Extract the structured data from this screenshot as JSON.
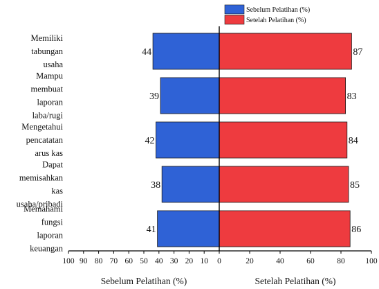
{
  "chart_data": {
    "type": "bar",
    "orientation": "horizontal-diverging",
    "categories": [
      [
        "Memiliki",
        "tabungan",
        "usaha"
      ],
      [
        "Mampu",
        "membuat",
        "laporan",
        "laba/rugi"
      ],
      [
        "Mengetahui",
        "pencatatan",
        "arus kas"
      ],
      [
        "Dapat",
        "memisahkan",
        "kas",
        "usaha/pribadi"
      ],
      [
        "Memahami",
        "fungsi",
        "laporan",
        "keuangan"
      ]
    ],
    "series": [
      {
        "name": "Sebelum Pelatihan (%)",
        "values": [
          44,
          39,
          42,
          38,
          41
        ],
        "color": "#2f62d6",
        "side": "left"
      },
      {
        "name": "Setelah Pelatihan (%)",
        "values": [
          87,
          83,
          84,
          85,
          86
        ],
        "color": "#ee3b3f",
        "side": "right"
      }
    ],
    "left_axis": {
      "title": "Sebelum Pelatihan (%)",
      "range": [
        0,
        100
      ],
      "ticks": [
        "100",
        "90",
        "80",
        "70",
        "60",
        "50",
        "40",
        "30",
        "20",
        "10",
        "0"
      ]
    },
    "right_axis": {
      "title": "Setelah Pelatihan (%)",
      "range": [
        0,
        100
      ],
      "ticks": [
        "0",
        "20",
        "40",
        "60",
        "80",
        "100"
      ]
    },
    "grid": false,
    "legend_position": "top-center"
  }
}
